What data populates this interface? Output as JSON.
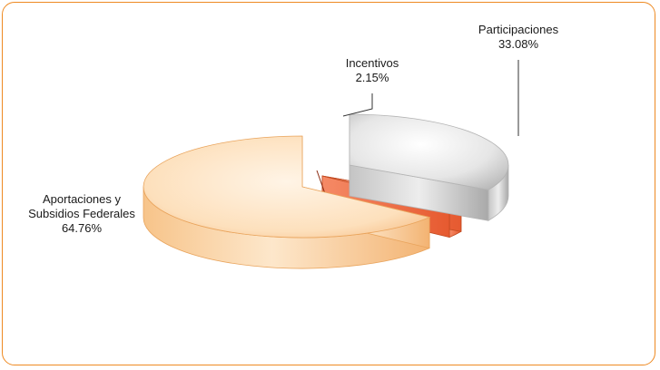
{
  "chart_data": {
    "type": "pie",
    "style": "3d-exploded",
    "legend": "none",
    "categories": [
      "Participaciones",
      "Incentivos",
      "Aportaciones y Subsidios Federales"
    ],
    "values": [
      33.08,
      2.15,
      64.76
    ],
    "labels": [
      {
        "lines": [
          "Participaciones",
          "33.08%"
        ]
      },
      {
        "lines": [
          "Incentivos",
          "2.15%"
        ]
      },
      {
        "lines": [
          "Aportaciones y",
          "Subsidios Federales",
          "64.76%"
        ]
      }
    ],
    "colors": [
      "#d4d4d4",
      "#f0764e",
      "#f8ca95"
    ],
    "border_color": "#ee8a22"
  }
}
